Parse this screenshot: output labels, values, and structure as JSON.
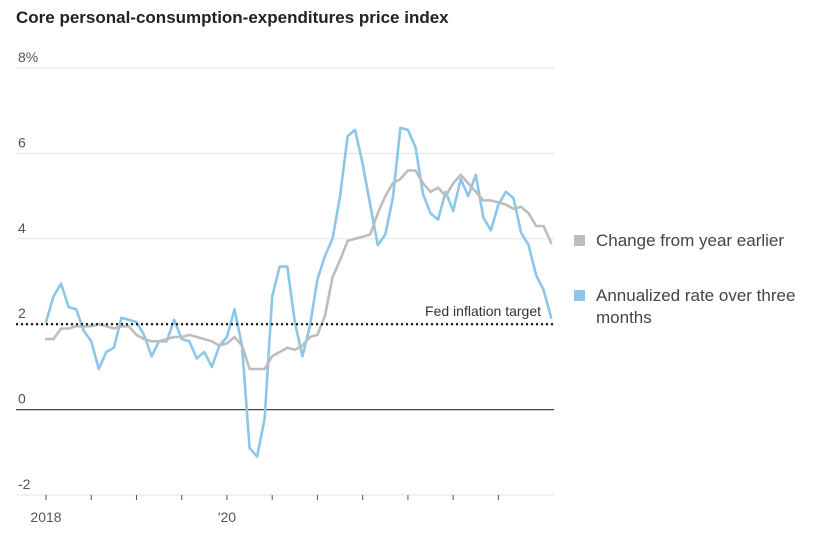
{
  "chart_data": {
    "type": "line",
    "title": "Core personal-consumption-expenditures price index",
    "ylim": [
      -2,
      8
    ],
    "y_ticks": [
      -2,
      0,
      2,
      4,
      6,
      8
    ],
    "y_tick_labels": [
      "-2",
      "0",
      "2",
      "4",
      "6",
      "8%"
    ],
    "x_tick_labels": [
      "2018",
      "",
      "",
      "",
      "'20",
      "",
      "",
      "",
      "",
      "",
      ""
    ],
    "x_tick_dates": [
      "2018-01",
      "2018-07",
      "2019-01",
      "2019-07",
      "2020-01",
      "2020-07",
      "2021-01",
      "2021-07",
      "2022-01",
      "2022-07",
      "2023-01"
    ],
    "grid": true,
    "legend_placement": "right",
    "reference_line": {
      "value": 2.0,
      "label": "Fed inflation target"
    },
    "x": [
      "2018-01",
      "2018-02",
      "2018-03",
      "2018-04",
      "2018-05",
      "2018-06",
      "2018-07",
      "2018-08",
      "2018-09",
      "2018-10",
      "2018-11",
      "2018-12",
      "2019-01",
      "2019-02",
      "2019-03",
      "2019-04",
      "2019-05",
      "2019-06",
      "2019-07",
      "2019-08",
      "2019-09",
      "2019-10",
      "2019-11",
      "2019-12",
      "2020-01",
      "2020-02",
      "2020-03",
      "2020-04",
      "2020-05",
      "2020-06",
      "2020-07",
      "2020-08",
      "2020-09",
      "2020-10",
      "2020-11",
      "2020-12",
      "2021-01",
      "2021-02",
      "2021-03",
      "2021-04",
      "2021-05",
      "2021-06",
      "2021-07",
      "2021-08",
      "2021-09",
      "2021-10",
      "2021-11",
      "2021-12",
      "2022-01",
      "2022-02",
      "2022-03",
      "2022-04",
      "2022-05",
      "2022-06",
      "2022-07",
      "2022-08",
      "2022-09",
      "2022-10",
      "2022-11",
      "2022-12",
      "2023-01",
      "2023-02",
      "2023-03",
      "2023-04",
      "2023-05",
      "2023-06",
      "2023-07",
      "2023-08"
    ],
    "series": [
      {
        "name": "Change from year earlier",
        "color": "#bdbdbd",
        "values": [
          1.65,
          1.65,
          1.9,
          1.9,
          1.95,
          1.95,
          1.95,
          2.0,
          1.95,
          1.9,
          1.95,
          1.95,
          1.75,
          1.65,
          1.6,
          1.6,
          1.65,
          1.7,
          1.7,
          1.75,
          1.7,
          1.65,
          1.6,
          1.5,
          1.55,
          1.7,
          1.5,
          0.95,
          0.95,
          0.95,
          1.25,
          1.35,
          1.45,
          1.4,
          1.5,
          1.7,
          1.75,
          2.2,
          3.1,
          3.5,
          3.95,
          4.0,
          4.05,
          4.1,
          4.6,
          5.0,
          5.3,
          5.4,
          5.6,
          5.6,
          5.3,
          5.1,
          5.2,
          5.0,
          5.3,
          5.5,
          5.3,
          5.1,
          4.9,
          4.9,
          4.85,
          4.8,
          4.7,
          4.75,
          4.6,
          4.3,
          4.3,
          3.9
        ]
      },
      {
        "name": "Annualized rate over three months",
        "color": "#8cc6e9",
        "values": [
          2.05,
          2.65,
          2.95,
          2.4,
          2.35,
          1.85,
          1.6,
          0.95,
          1.35,
          1.45,
          2.15,
          2.1,
          2.05,
          1.75,
          1.25,
          1.6,
          1.6,
          2.1,
          1.65,
          1.6,
          1.2,
          1.35,
          1.0,
          1.5,
          1.7,
          2.35,
          1.5,
          -0.9,
          -1.1,
          -0.2,
          2.65,
          3.35,
          3.35,
          2.05,
          1.25,
          1.95,
          3.05,
          3.6,
          4.0,
          5.0,
          6.4,
          6.55,
          5.75,
          4.8,
          3.85,
          4.1,
          4.95,
          6.6,
          6.55,
          6.15,
          5.05,
          4.6,
          4.45,
          5.1,
          4.65,
          5.4,
          5.0,
          5.5,
          4.5,
          4.2,
          4.8,
          5.1,
          4.95,
          4.15,
          3.85,
          3.15,
          2.8,
          2.15
        ]
      }
    ]
  }
}
